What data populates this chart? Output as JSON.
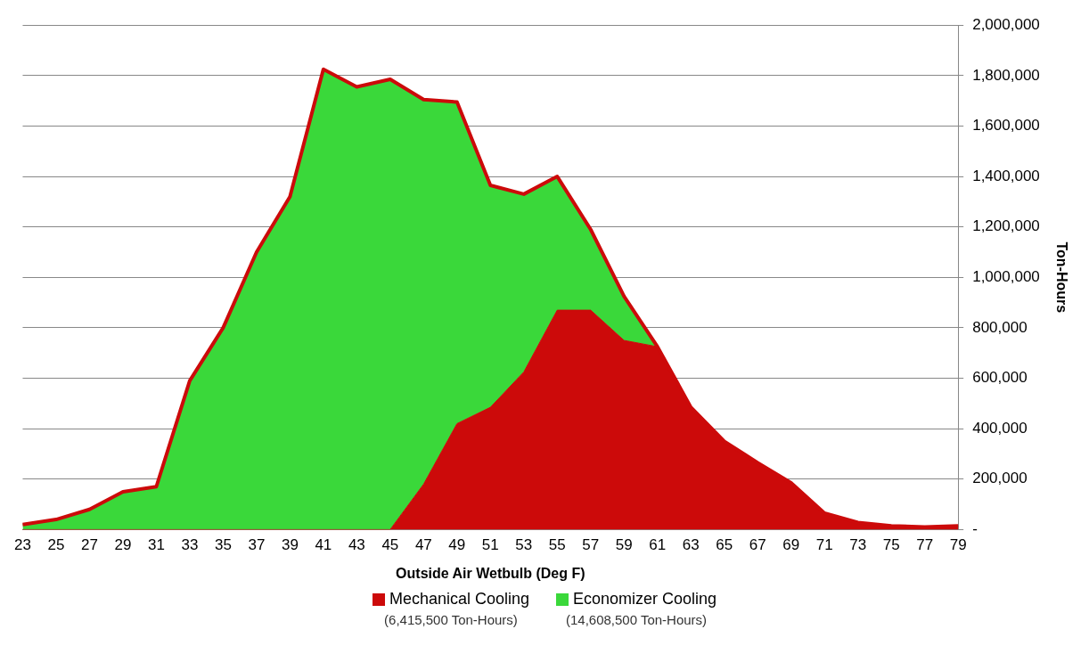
{
  "chart_data": {
    "type": "area",
    "stacked": true,
    "xlabel": "Outside Air Wetbulb (Deg F)",
    "ylabel": "Ton-Hours",
    "categories": [
      "23",
      "25",
      "27",
      "29",
      "31",
      "33",
      "35",
      "37",
      "39",
      "41",
      "43",
      "45",
      "47",
      "49",
      "51",
      "53",
      "55",
      "57",
      "59",
      "61",
      "63",
      "65",
      "67",
      "69",
      "71",
      "73",
      "75",
      "77",
      "79"
    ],
    "series": [
      {
        "name": "Mechanical Cooling",
        "color": "#cc0a0a",
        "values": [
          0,
          0,
          0,
          0,
          0,
          0,
          0,
          0,
          0,
          0,
          0,
          0,
          180000,
          420000,
          485000,
          625000,
          870000,
          870000,
          750000,
          725000,
          485000,
          350000,
          265000,
          185000,
          65000,
          28000,
          15000,
          10000,
          15000
        ]
      },
      {
        "name": "Economizer Cooling",
        "color": "#3ad83a",
        "values": [
          20000,
          40000,
          80000,
          150000,
          170000,
          590000,
          800000,
          1100000,
          1320000,
          1825000,
          1755000,
          1785000,
          1525000,
          1275000,
          880000,
          705000,
          530000,
          320000,
          175000,
          0,
          0,
          0,
          0,
          0,
          0,
          0,
          0,
          0,
          0
        ]
      },
      {
        "type": "line",
        "color": "#cc0a0a",
        "values": [
          20000,
          40000,
          80000,
          150000,
          170000,
          590000,
          800000,
          1100000,
          1320000,
          1825000,
          1755000,
          1785000,
          1705000,
          1695000,
          1365000,
          1330000,
          1400000,
          1190000,
          925000,
          725000,
          485000,
          350000,
          265000,
          185000,
          65000,
          28000,
          15000,
          10000,
          15000
        ]
      }
    ],
    "ylim": [
      0,
      2000000
    ],
    "yticks": [
      {
        "value": 0,
        "label": "-"
      },
      {
        "value": 200000,
        "label": "200,000"
      },
      {
        "value": 400000,
        "label": "400,000"
      },
      {
        "value": 600000,
        "label": "600,000"
      },
      {
        "value": 800000,
        "label": "800,000"
      },
      {
        "value": 1000000,
        "label": "1,000,000"
      },
      {
        "value": 1200000,
        "label": "1,200,000"
      },
      {
        "value": 1400000,
        "label": "1,400,000"
      },
      {
        "value": 1600000,
        "label": "1,600,000"
      },
      {
        "value": 1800000,
        "label": "1,800,000"
      },
      {
        "value": 2000000,
        "label": "2,000,000"
      }
    ],
    "grid": "y",
    "legend": "bottom",
    "annotations": [
      "(6,415,500 Ton-Hours)",
      "(14,608,500 Ton-Hours)"
    ]
  }
}
